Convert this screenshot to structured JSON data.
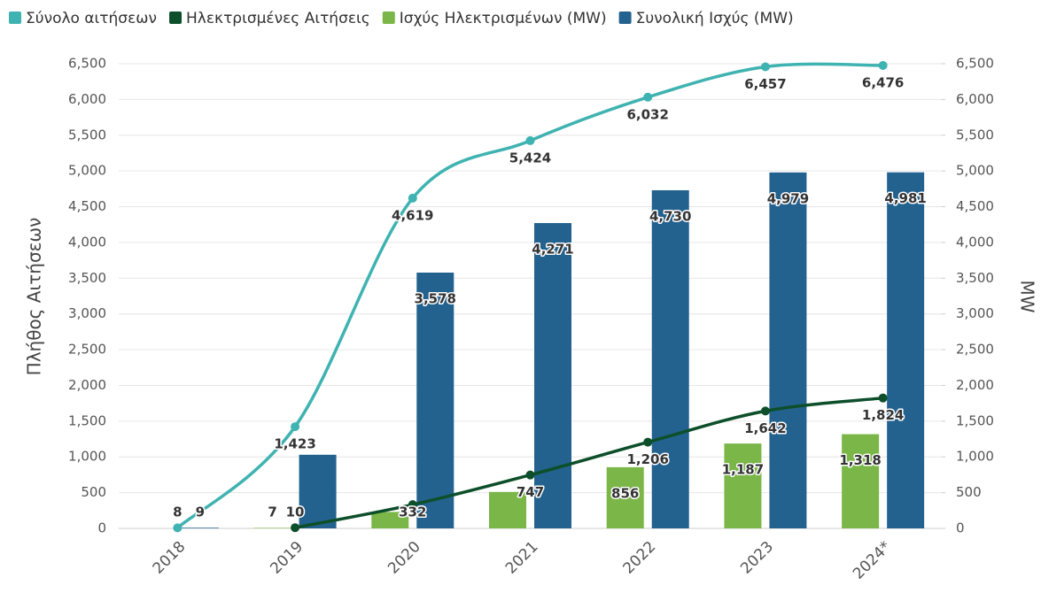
{
  "chart_data": {
    "type": "bar-line",
    "categories": [
      "2018",
      "2019",
      "2020",
      "2021",
      "2022",
      "2023",
      "2024*"
    ],
    "y_label": "Πλήθος Αιτήσεων",
    "y2_label": "MW",
    "ylim": [
      0,
      6500
    ],
    "yticks": [
      0,
      500,
      {
        "value": 1000,
        "label": "1,000"
      },
      {
        "value": 1500,
        "label": "1,500"
      },
      {
        "value": 2000,
        "label": "2,000"
      },
      {
        "value": 2500,
        "label": "2,500"
      },
      {
        "value": 3000,
        "label": "3,000"
      },
      {
        "value": 3500,
        "label": "3,500"
      },
      {
        "value": 4000,
        "label": "4,000"
      },
      {
        "value": 4500,
        "label": "4,500"
      },
      {
        "value": 5000,
        "label": "5,000"
      },
      {
        "value": 5500,
        "label": "5,500"
      },
      {
        "value": 6000,
        "label": "6,000"
      },
      {
        "value": 6500,
        "label": "6,500"
      }
    ],
    "y2lim": [
      0,
      6500
    ],
    "y2ticks": [
      0,
      500,
      {
        "value": 1000,
        "label": "1,000"
      },
      {
        "value": 1500,
        "label": "1,500"
      },
      {
        "value": 2000,
        "label": "2,000"
      },
      {
        "value": 2500,
        "label": "2,500"
      },
      {
        "value": 3000,
        "label": "3,000"
      },
      {
        "value": 3500,
        "label": "3,500"
      },
      {
        "value": 4000,
        "label": "4,000"
      },
      {
        "value": 4500,
        "label": "4,500"
      },
      {
        "value": 5000,
        "label": "5,000"
      },
      {
        "value": 5500,
        "label": "5,500"
      },
      {
        "value": 6000,
        "label": "6,000"
      },
      {
        "value": 6500,
        "label": "6,500"
      }
    ],
    "grid": true,
    "series": [
      {
        "name": "Σύνολο αιτήσεων",
        "type": "line",
        "color": "#3fb3b1",
        "values": [
          8,
          1423,
          4619,
          5424,
          6032,
          6457,
          6476
        ],
        "value_labels": [
          "8",
          "1,423",
          "4,619",
          "5,424",
          "6,032",
          "6,457",
          "6,476"
        ]
      },
      {
        "name": "Ηλεκτρισμένες Αιτήσεις",
        "type": "line",
        "color": "#0d4f2a",
        "values": [
          null,
          10,
          332,
          747,
          1206,
          1642,
          1824
        ],
        "value_labels": [
          null,
          "10",
          "332",
          "747",
          "1,206",
          "1,642",
          "1,824"
        ]
      },
      {
        "name": "Ισχύς Ηλεκτρισμένων (MW)",
        "type": "bar",
        "axis": "y2",
        "color": "#7ab648",
        "values": [
          null,
          7,
          230,
          510,
          856,
          1187,
          1318
        ],
        "value_labels": [
          null,
          "7",
          null,
          null,
          "856",
          "1,187",
          "1,318"
        ]
      },
      {
        "name": "Συνολική Ισχύς (MW)",
        "type": "bar",
        "axis": "y2",
        "color": "#23628f",
        "values": [
          9,
          1030,
          3578,
          4271,
          4730,
          4979,
          4981
        ],
        "value_labels": [
          "9",
          null,
          "3,578",
          "4,271",
          "4,730",
          "4,979",
          "4,981"
        ]
      }
    ]
  }
}
